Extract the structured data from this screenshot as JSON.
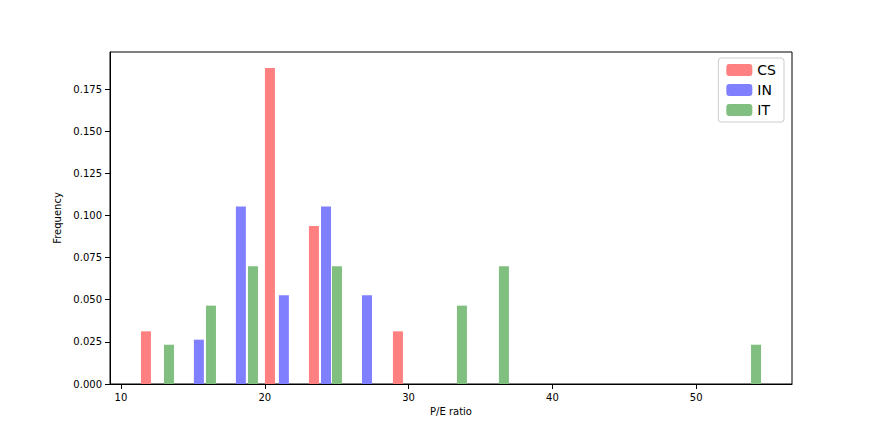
{
  "chart_data": {
    "type": "bar",
    "x_label": "P/E ratio",
    "y_label": "Frequency",
    "series": [
      {
        "name": "CS",
        "color": "#ff8080",
        "x": [
          11.74,
          20.36,
          23.42,
          29.26
        ],
        "values": [
          0.03125,
          0.1875,
          0.09375,
          0.03125
        ]
      },
      {
        "name": "IN",
        "color": "#8080ff",
        "x": [
          15.42,
          18.34,
          21.33,
          24.26,
          27.11
        ],
        "values": [
          0.0263,
          0.1053,
          0.0526,
          0.1053,
          0.0526
        ]
      },
      {
        "name": "IT",
        "color": "#80bf80",
        "x": [
          13.34,
          16.26,
          19.18,
          25.02,
          33.71,
          36.63,
          54.16
        ],
        "values": [
          0.0233,
          0.0465,
          0.0698,
          0.0698,
          0.0465,
          0.0698,
          0.0233
        ]
      }
    ],
    "xlim": [
      9.24,
      56.66
    ],
    "xticks": [
      10,
      20,
      30,
      40,
      50
    ],
    "ylim": [
      0,
      0.197
    ],
    "yticks": [
      {
        "value": 0,
        "label": "0.000"
      },
      {
        "value": 0.025,
        "label": "0.025"
      },
      {
        "value": 0.05,
        "label": "0.050"
      },
      {
        "value": 0.075,
        "label": "0.075"
      },
      {
        "value": 0.1,
        "label": "0.100"
      },
      {
        "value": 0.125,
        "label": "0.125"
      },
      {
        "value": 0.15,
        "label": "0.150"
      },
      {
        "value": 0.175,
        "label": "0.175"
      }
    ],
    "grid": false,
    "legend": "upper right"
  }
}
